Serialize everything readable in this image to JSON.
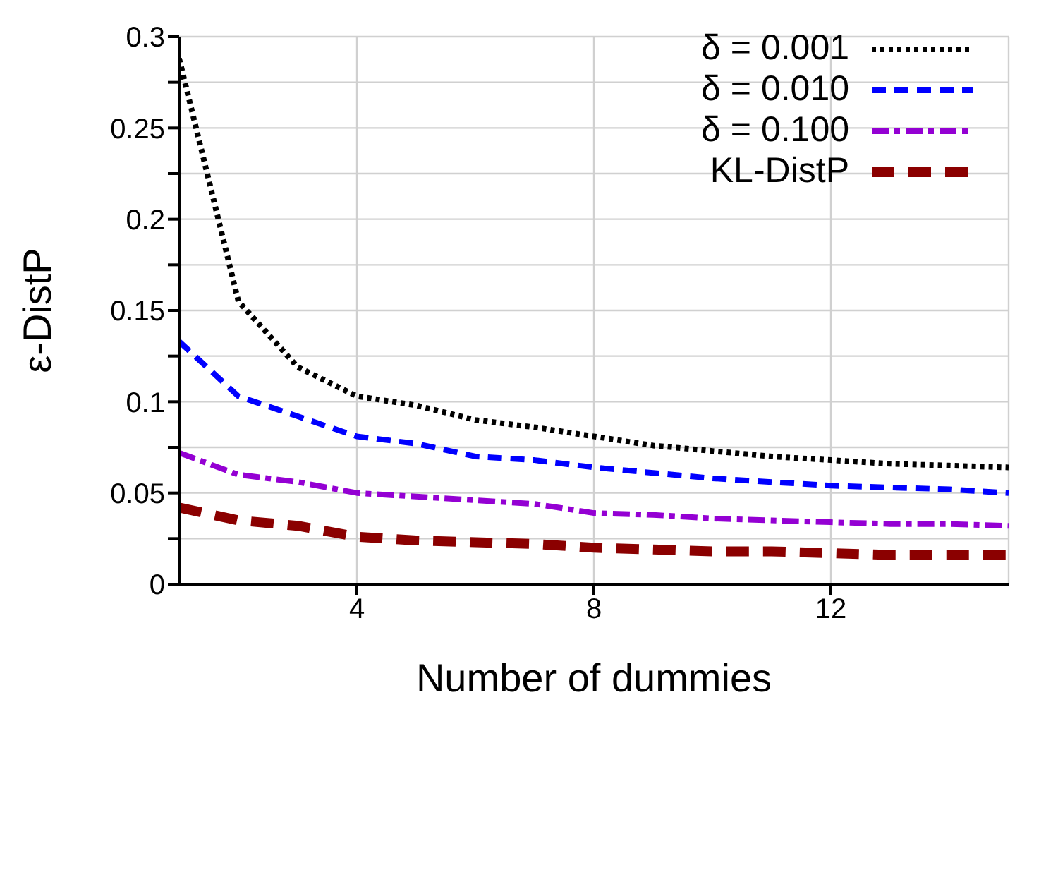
{
  "chart_data": {
    "type": "line",
    "xlabel": "Number of dummies",
    "ylabel": "ε-DistP",
    "x": [
      1,
      2,
      3,
      4,
      5,
      6,
      7,
      8,
      9,
      10,
      11,
      12,
      13,
      14,
      15
    ],
    "series": [
      {
        "name": "δ = 0.001",
        "color": "#000000",
        "line_style": "dotted",
        "values": [
          0.288,
          0.155,
          0.119,
          0.103,
          0.098,
          0.09,
          0.086,
          0.081,
          0.076,
          0.073,
          0.07,
          0.068,
          0.066,
          0.065,
          0.064
        ]
      },
      {
        "name": "δ = 0.010",
        "color": "#0000ff",
        "line_style": "dashed",
        "values": [
          0.133,
          0.103,
          0.092,
          0.081,
          0.077,
          0.07,
          0.068,
          0.064,
          0.061,
          0.058,
          0.056,
          0.054,
          0.053,
          0.052,
          0.05
        ]
      },
      {
        "name": "δ = 0.100",
        "color": "#9400d3",
        "line_style": "dashed",
        "values": [
          0.072,
          0.06,
          0.056,
          0.05,
          0.048,
          0.046,
          0.044,
          0.039,
          0.038,
          0.036,
          0.035,
          0.034,
          0.033,
          0.033,
          0.032
        ]
      },
      {
        "name": "KL-DistP",
        "color": "#8b0000",
        "line_style": "dashed",
        "values": [
          0.042,
          0.035,
          0.032,
          0.026,
          0.024,
          0.023,
          0.022,
          0.02,
          0.019,
          0.018,
          0.018,
          0.017,
          0.016,
          0.016,
          0.016
        ]
      }
    ],
    "xlim": [
      1,
      15
    ],
    "xticks": [
      4,
      8,
      12
    ],
    "ylim": [
      0,
      0.3
    ],
    "yticks": [
      0,
      {
        "value": 0.025,
        "label": null
      },
      0.05,
      {
        "value": 0.075,
        "label": null
      },
      0.1,
      {
        "value": 0.125,
        "label": null
      },
      0.15,
      {
        "value": 0.175,
        "label": null
      },
      0.2,
      {
        "value": 0.225,
        "label": null
      },
      0.25,
      {
        "value": 0.275,
        "label": null
      },
      0.3
    ],
    "grid": true,
    "legend": "top right",
    "marker": "none"
  }
}
